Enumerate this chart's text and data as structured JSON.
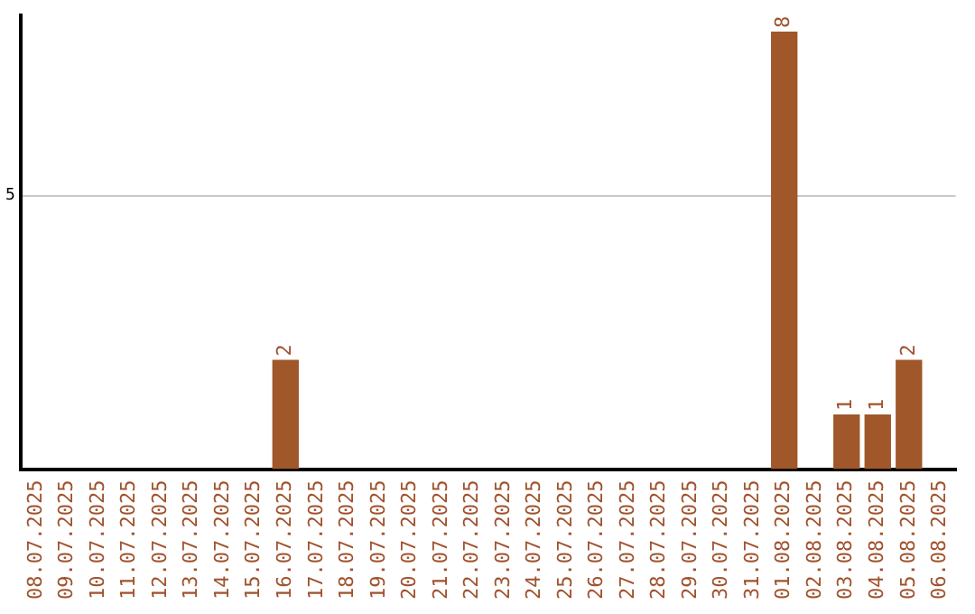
{
  "chart_data": {
    "type": "bar",
    "categories": [
      "08.07.2025",
      "09.07.2025",
      "10.07.2025",
      "11.07.2025",
      "12.07.2025",
      "13.07.2025",
      "14.07.2025",
      "15.07.2025",
      "16.07.2025",
      "17.07.2025",
      "18.07.2025",
      "19.07.2025",
      "20.07.2025",
      "21.07.2025",
      "22.07.2025",
      "23.07.2025",
      "24.07.2025",
      "25.07.2025",
      "26.07.2025",
      "27.07.2025",
      "28.07.2025",
      "29.07.2025",
      "30.07.2025",
      "31.07.2025",
      "01.08.2025",
      "02.08.2025",
      "03.08.2025",
      "04.08.2025",
      "05.08.2025",
      "06.08.2025"
    ],
    "values": [
      0,
      0,
      0,
      0,
      0,
      0,
      0,
      0,
      2,
      0,
      0,
      0,
      0,
      0,
      0,
      0,
      0,
      0,
      0,
      0,
      0,
      0,
      0,
      0,
      8,
      0,
      1,
      1,
      2,
      0
    ],
    "value_labels": [
      null,
      null,
      null,
      null,
      null,
      null,
      null,
      null,
      "2",
      null,
      null,
      null,
      null,
      null,
      null,
      null,
      null,
      null,
      null,
      null,
      null,
      null,
      null,
      null,
      "8",
      null,
      "1",
      "1",
      "2",
      null
    ],
    "color": "#a0572a",
    "ylim": [
      0,
      8.3
    ],
    "yticks": [
      5
    ],
    "grid": "y",
    "legend": false
  }
}
